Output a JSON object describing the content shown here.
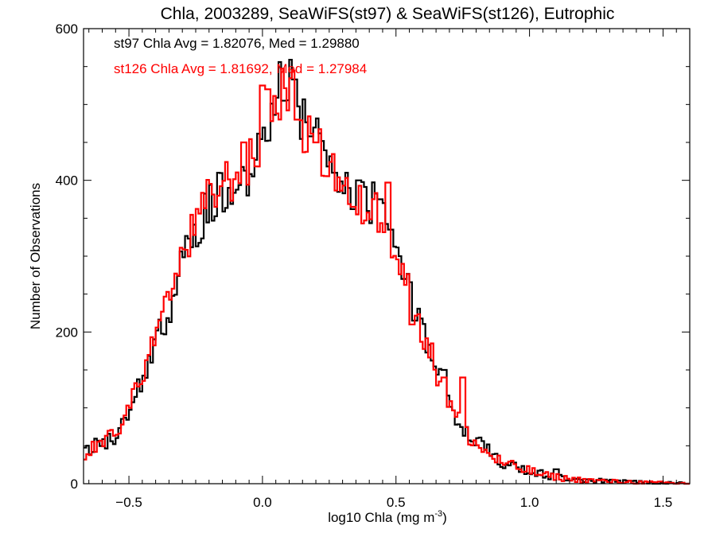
{
  "chart_data": {
    "type": "histogram",
    "title": "Chla, 2003289, SeaWiFS(st97) & SeaWiFS(st126), Eutrophic",
    "xlabel": "log10 Chla (mg m",
    "xlabel_sup": "-3",
    "xlabel_suffix": ")",
    "ylabel": "Number of Observations",
    "xlim": [
      -0.67,
      1.6
    ],
    "ylim": [
      0,
      600
    ],
    "xticks": [
      -0.5,
      0.0,
      0.5,
      1.0,
      1.5
    ],
    "xtick_labels": [
      "−0.5",
      "0.0",
      "0.5",
      "1.0",
      "1.5"
    ],
    "yticks": [
      0,
      200,
      400,
      600
    ],
    "ytick_labels": [
      "0",
      "200",
      "400",
      "600"
    ],
    "annotations": [
      {
        "text": "st97 Chla Avg = 1.82076, Med = 1.29880",
        "color": "#000000"
      },
      {
        "text": "st126 Chla Avg = 1.81692, Med = 1.27984",
        "color": "#ff0000"
      }
    ],
    "bin_width": 0.01,
    "x_start": -0.67,
    "series": [
      {
        "name": "st97",
        "color": "#000000",
        "anchors": [
          [
            -0.67,
            37
          ],
          [
            -0.6,
            55
          ],
          [
            -0.55,
            62
          ],
          [
            -0.5,
            100
          ],
          [
            -0.45,
            140
          ],
          [
            -0.4,
            180
          ],
          [
            -0.35,
            230
          ],
          [
            -0.3,
            290
          ],
          [
            -0.25,
            330
          ],
          [
            -0.2,
            370
          ],
          [
            -0.15,
            385
          ],
          [
            -0.1,
            395
          ],
          [
            -0.05,
            410
          ],
          [
            0.0,
            440
          ],
          [
            0.05,
            500
          ],
          [
            0.1,
            545
          ],
          [
            0.15,
            480
          ],
          [
            0.2,
            455
          ],
          [
            0.25,
            430
          ],
          [
            0.3,
            400
          ],
          [
            0.35,
            375
          ],
          [
            0.4,
            370
          ],
          [
            0.45,
            360
          ],
          [
            0.5,
            310
          ],
          [
            0.55,
            260
          ],
          [
            0.6,
            210
          ],
          [
            0.65,
            155
          ],
          [
            0.7,
            110
          ],
          [
            0.75,
            75
          ],
          [
            0.8,
            55
          ],
          [
            0.85,
            40
          ],
          [
            0.9,
            28
          ],
          [
            0.95,
            22
          ],
          [
            1.0,
            18
          ],
          [
            1.05,
            12
          ],
          [
            1.1,
            10
          ],
          [
            1.15,
            6
          ],
          [
            1.2,
            5
          ],
          [
            1.3,
            3
          ],
          [
            1.4,
            2
          ],
          [
            1.5,
            1
          ],
          [
            1.6,
            0
          ]
        ],
        "bumps": [
          [
            0.07,
            556
          ],
          [
            0.08,
            505
          ],
          [
            0.12,
            533
          ],
          [
            0.18,
            458
          ],
          [
            0.27,
            410
          ],
          [
            0.34,
            362
          ],
          [
            0.36,
            400
          ],
          [
            0.44,
            375
          ],
          [
            0.48,
            335
          ],
          [
            0.515,
            300
          ],
          [
            0.53,
            270
          ],
          [
            0.57,
            215
          ],
          [
            0.68,
            150
          ],
          [
            1.1,
            19
          ]
        ]
      },
      {
        "name": "st126",
        "color": "#ff0000",
        "anchors": [
          [
            -0.67,
            35
          ],
          [
            -0.6,
            55
          ],
          [
            -0.55,
            62
          ],
          [
            -0.5,
            105
          ],
          [
            -0.45,
            145
          ],
          [
            -0.4,
            190
          ],
          [
            -0.35,
            240
          ],
          [
            -0.3,
            300
          ],
          [
            -0.25,
            340
          ],
          [
            -0.2,
            375
          ],
          [
            -0.15,
            395
          ],
          [
            -0.1,
            405
          ],
          [
            -0.05,
            420
          ],
          [
            0.0,
            445
          ],
          [
            0.05,
            505
          ],
          [
            0.1,
            530
          ],
          [
            0.15,
            470
          ],
          [
            0.2,
            440
          ],
          [
            0.25,
            425
          ],
          [
            0.3,
            395
          ],
          [
            0.35,
            365
          ],
          [
            0.4,
            365
          ],
          [
            0.45,
            355
          ],
          [
            0.5,
            305
          ],
          [
            0.55,
            255
          ],
          [
            0.6,
            205
          ],
          [
            0.65,
            150
          ],
          [
            0.7,
            105
          ],
          [
            0.75,
            72
          ],
          [
            0.8,
            52
          ],
          [
            0.85,
            38
          ],
          [
            0.9,
            27
          ],
          [
            0.95,
            21
          ],
          [
            1.0,
            17
          ],
          [
            1.05,
            11
          ],
          [
            1.1,
            9
          ],
          [
            1.15,
            6
          ],
          [
            1.2,
            5
          ],
          [
            1.3,
            3
          ],
          [
            1.4,
            2
          ],
          [
            1.5,
            1
          ],
          [
            1.6,
            0
          ]
        ],
        "bumps": [
          [
            0.0,
            525
          ],
          [
            0.02,
            520
          ],
          [
            -0.07,
            450
          ],
          [
            0.13,
            480
          ],
          [
            0.2,
            450
          ],
          [
            0.34,
            365
          ],
          [
            0.47,
            397
          ],
          [
            0.56,
            210
          ],
          [
            0.68,
            140
          ],
          [
            0.75,
            140
          ]
        ]
      }
    ]
  }
}
